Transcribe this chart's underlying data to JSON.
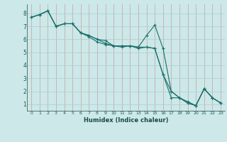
{
  "xlabel": "Humidex (Indice chaleur)",
  "background_color": "#cce8e8",
  "grid_color": "#aacfcf",
  "line_color": "#1a6e6a",
  "xlim": [
    -0.5,
    23.5
  ],
  "ylim": [
    0.5,
    8.7
  ],
  "xticks": [
    0,
    1,
    2,
    3,
    4,
    5,
    6,
    7,
    8,
    9,
    10,
    11,
    12,
    13,
    14,
    15,
    16,
    17,
    18,
    19,
    20,
    21,
    22,
    23
  ],
  "yticks": [
    1,
    2,
    3,
    4,
    5,
    6,
    7,
    8
  ],
  "series": [
    [
      7.7,
      7.9,
      8.2,
      7.0,
      7.2,
      7.2,
      6.5,
      6.2,
      5.8,
      5.6,
      5.5,
      5.5,
      5.5,
      5.4,
      6.3,
      7.1,
      5.3,
      2.0,
      1.5,
      1.1,
      0.9,
      2.2,
      1.5,
      1.1
    ],
    [
      7.7,
      7.9,
      8.2,
      7.0,
      7.2,
      7.2,
      6.5,
      6.3,
      6.0,
      5.9,
      5.5,
      5.4,
      5.5,
      5.3,
      5.4,
      5.3,
      3.3,
      2.0,
      1.5,
      1.1,
      0.9,
      2.2,
      1.5,
      1.1
    ],
    [
      7.7,
      7.9,
      8.2,
      7.0,
      7.2,
      7.2,
      6.5,
      6.3,
      6.0,
      5.7,
      5.5,
      5.5,
      5.5,
      5.4,
      5.4,
      5.3,
      3.3,
      1.5,
      1.5,
      1.2,
      0.9,
      2.2,
      1.5,
      1.1
    ]
  ]
}
